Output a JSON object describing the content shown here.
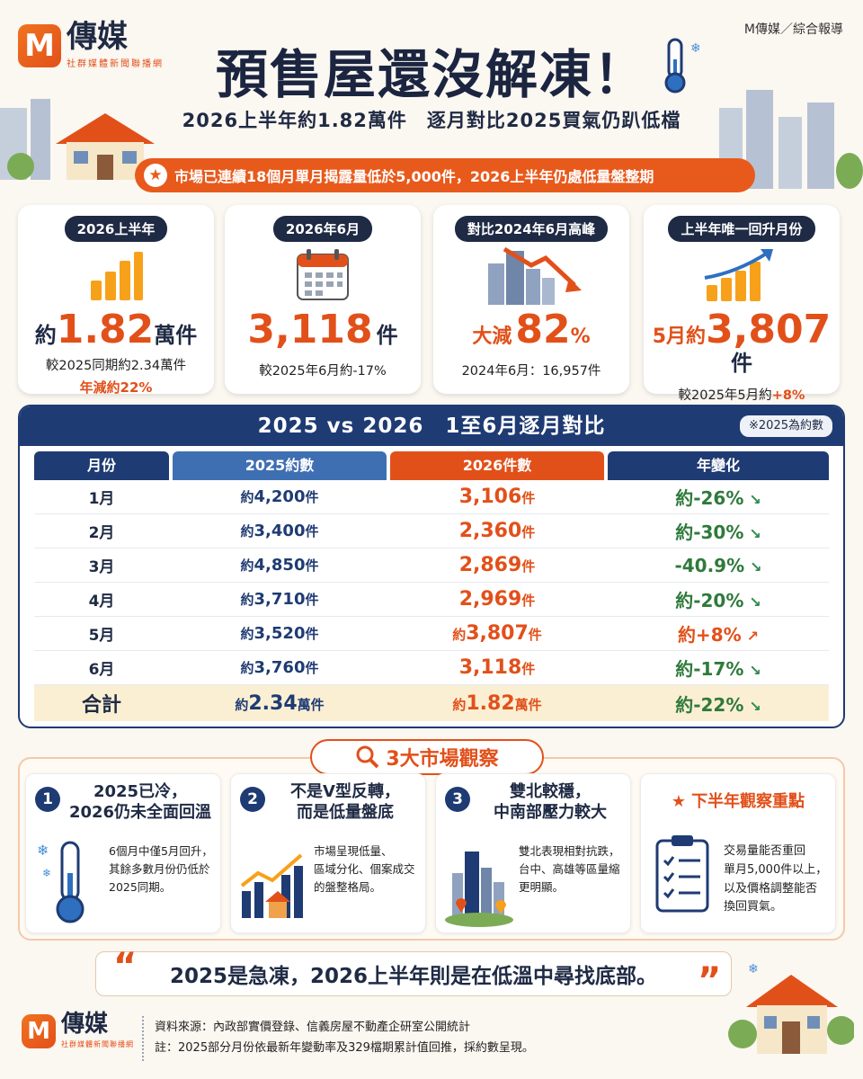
{
  "header": {
    "logo_mark": "M",
    "logo_name": "傳媒",
    "logo_sub": "社群媒體新聞聯播網",
    "title": "預售屋還沒解凍！",
    "subtitle": "2026上半年約1.82萬件　逐月對比2025買氣仍趴低檔",
    "source_tag": "M傳媒／綜合報導",
    "banner": "市場已連續18個月單月揭露量低於5,000件，2026上半年仍處低量盤整期"
  },
  "stats": [
    {
      "tag": "2026上半年",
      "pre": "約",
      "big": "1.82",
      "unit": "萬件",
      "sub": "較2025同期約2.34萬件",
      "sub2": "年減約22%"
    },
    {
      "tag": "2026年6月",
      "big": "3,118",
      "unit": "件",
      "sub": "較2025年6月約-17%"
    },
    {
      "tag": "對比2024年6月高峰",
      "pre": "大減",
      "big": "82",
      "unit": "%",
      "sub": "2024年6月：16,957件"
    },
    {
      "tag": "上半年唯一回升月份",
      "pre": "5月約",
      "big": "3,807",
      "unit": "件",
      "sub_pre": "較2025年5月約",
      "sub_hl": "+8%"
    }
  ],
  "table": {
    "title": "2025 vs 2026　1至6月逐月對比",
    "note": "※2025為約數",
    "headers": [
      "月份",
      "2025約數",
      "2026件數",
      "年變化"
    ],
    "rows": [
      {
        "month": "1月",
        "y2025_pre": "約",
        "y2025": "4,200",
        "y2025_unit": "件",
        "y2026_pre": "",
        "y2026": "3,106",
        "y2026_unit": "件",
        "change": "約-26%"
      },
      {
        "month": "2月",
        "y2025_pre": "約",
        "y2025": "3,400",
        "y2025_unit": "件",
        "y2026_pre": "",
        "y2026": "2,360",
        "y2026_unit": "件",
        "change": "約-30%"
      },
      {
        "month": "3月",
        "y2025_pre": "約",
        "y2025": "4,850",
        "y2025_unit": "件",
        "y2026_pre": "",
        "y2026": "2,869",
        "y2026_unit": "件",
        "change": "-40.9%"
      },
      {
        "month": "4月",
        "y2025_pre": "約",
        "y2025": "3,710",
        "y2025_unit": "件",
        "y2026_pre": "",
        "y2026": "2,969",
        "y2026_unit": "件",
        "change": "約-20%"
      },
      {
        "month": "5月",
        "y2025_pre": "約",
        "y2025": "3,520",
        "y2025_unit": "件",
        "y2026_pre": "約",
        "y2026": "3,807",
        "y2026_unit": "件",
        "change": "約+8%"
      },
      {
        "month": "6月",
        "y2025_pre": "約",
        "y2025": "3,760",
        "y2025_unit": "件",
        "y2026_pre": "",
        "y2026": "3,118",
        "y2026_unit": "件",
        "change": "約-17%"
      }
    ],
    "total": {
      "label": "合計",
      "y2025_pre": "約",
      "y2025": "2.34",
      "y2025_unit": "萬件",
      "y2026_pre": "約",
      "y2026": "1.82",
      "y2026_unit": "萬件",
      "change": "約-22%"
    }
  },
  "observations": {
    "header": "3大市場觀察",
    "items": [
      {
        "num": "1",
        "title_l1": "2025已冷，",
        "title_l2": "2026仍未全面回溫",
        "body": [
          "6個月中僅5月回升，",
          "其餘多數月份仍低於",
          "2025同期。"
        ]
      },
      {
        "num": "2",
        "title_l1": "不是V型反轉，",
        "title_l2": "而是低量盤底",
        "body": [
          "市場呈現低量、",
          "區域分化、個案成交",
          "的盤整格局。"
        ]
      },
      {
        "num": "3",
        "title_l1": "雙北較穩，",
        "title_l2": "中南部壓力較大",
        "body": [
          "雙北表現相對抗跌，",
          "台中、高雄等區量縮",
          "更明顯。"
        ]
      }
    ],
    "focus": {
      "title": "下半年觀察重點",
      "body": [
        "交易量能否重回",
        "單月5,000件以上，",
        "以及價格調整能否",
        "換回買氣。"
      ]
    }
  },
  "quote": "2025是急凍，2026上半年則是在低溫中尋找底部。",
  "footer": {
    "source": "資料來源：內政部實價登錄、信義房屋不動產企研室公開統計",
    "note": "註：2025部分月份依最新年變動率及329檔期累計值回推，採約數呈現。"
  }
}
